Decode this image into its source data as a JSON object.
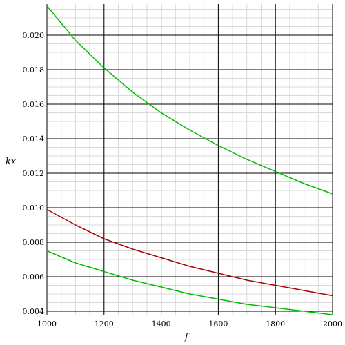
{
  "chart_data": {
    "type": "line",
    "title": "",
    "xlabel": "f",
    "ylabel": "kx",
    "xlim": [
      1000,
      2000
    ],
    "ylim": [
      0.0038,
      0.0218
    ],
    "grid": true,
    "x_ticks": [
      1000,
      1200,
      1400,
      1600,
      1800,
      2000
    ],
    "x_tick_labels": [
      "1000",
      "1200",
      "1400",
      "1600",
      "1800",
      "2000"
    ],
    "y_ticks": [
      0.004,
      0.006,
      0.008,
      0.01,
      0.012,
      0.014,
      0.016,
      0.018,
      0.02
    ],
    "y_tick_labels": [
      "0.004",
      "0.006",
      "0.008",
      "0.010",
      "0.012",
      "0.014",
      "0.016",
      "0.018",
      "0.020"
    ],
    "x": [
      1000,
      1100,
      1200,
      1300,
      1400,
      1500,
      1600,
      1700,
      1800,
      1900,
      2000
    ],
    "series": [
      {
        "color": "#00bb00",
        "values": [
          0.0217,
          0.0197,
          0.0181,
          0.0167,
          0.0155,
          0.0145,
          0.0136,
          0.0128,
          0.0121,
          0.0114,
          0.0108
        ]
      },
      {
        "color": "#aa0000",
        "values": [
          0.0099,
          0.009,
          0.0082,
          0.0076,
          0.0071,
          0.0066,
          0.0062,
          0.0058,
          0.0055,
          0.0052,
          0.0049
        ]
      },
      {
        "color": "#00bb00",
        "values": [
          0.0075,
          0.0068,
          0.0063,
          0.0058,
          0.0054,
          0.005,
          0.0047,
          0.0044,
          0.0042,
          0.004,
          0.0038
        ]
      }
    ]
  }
}
